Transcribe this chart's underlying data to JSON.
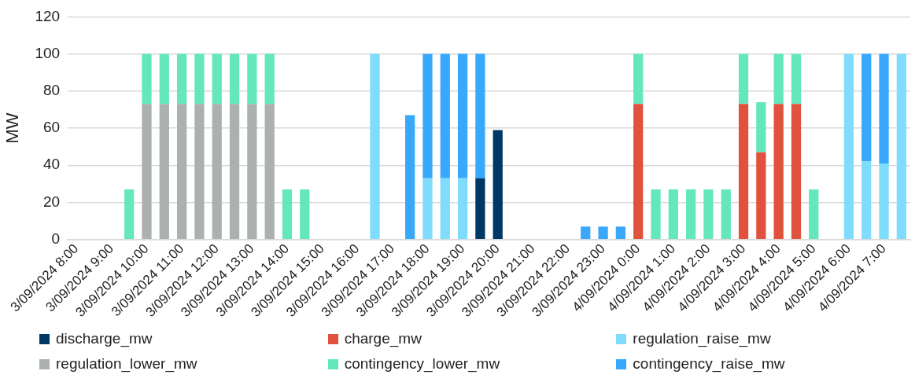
{
  "chart_data": {
    "type": "bar",
    "stacked": true,
    "ylabel": "MW",
    "ylim": [
      0,
      120
    ],
    "yticks": [
      0,
      20,
      40,
      60,
      80,
      100,
      120
    ],
    "grid": "y",
    "legend": "bottom",
    "categories": [
      "3/09/2024 8:00",
      null,
      "3/09/2024 9:00",
      null,
      "3/09/2024 10:00",
      null,
      "3/09/2024 11:00",
      null,
      "3/09/2024 12:00",
      null,
      "3/09/2024 13:00",
      null,
      "3/09/2024 14:00",
      null,
      "3/09/2024 15:00",
      null,
      "3/09/2024 16:00",
      null,
      "3/09/2024 17:00",
      null,
      "3/09/2024 18:00",
      null,
      "3/09/2024 19:00",
      null,
      "3/09/2024 20:00",
      null,
      "3/09/2024 21:00",
      null,
      "3/09/2024 22:00",
      null,
      "3/09/2024 23:00",
      null,
      "4/09/2024 0:00",
      null,
      "4/09/2024 1:00",
      null,
      "4/09/2024 2:00",
      null,
      "4/09/2024 3:00",
      null,
      "4/09/2024 4:00",
      null,
      "4/09/2024 5:00",
      null,
      "4/09/2024 6:00",
      null,
      "4/09/2024 7:00",
      null
    ],
    "series": [
      {
        "name": "discharge_mw",
        "color": "#003865",
        "values": [
          null,
          null,
          null,
          null,
          null,
          null,
          null,
          null,
          null,
          null,
          null,
          null,
          null,
          null,
          null,
          null,
          null,
          null,
          null,
          null,
          null,
          null,
          null,
          33,
          59,
          null,
          null,
          null,
          null,
          null,
          null,
          null,
          null,
          null,
          null,
          null,
          null,
          null,
          null,
          null,
          null,
          null,
          null,
          null,
          null,
          null,
          null,
          null
        ]
      },
      {
        "name": "charge_mw",
        "color": "#e0523d",
        "values": [
          null,
          null,
          null,
          null,
          null,
          null,
          null,
          null,
          null,
          null,
          null,
          null,
          null,
          null,
          null,
          null,
          null,
          null,
          null,
          null,
          null,
          null,
          null,
          null,
          null,
          null,
          null,
          null,
          null,
          null,
          null,
          null,
          73,
          null,
          null,
          null,
          null,
          null,
          73,
          47,
          73,
          73,
          null,
          null,
          null,
          null,
          null,
          null
        ]
      },
      {
        "name": "regulation_raise_mw",
        "color": "#7fdcfc",
        "values": [
          null,
          null,
          null,
          null,
          null,
          null,
          null,
          null,
          null,
          null,
          null,
          null,
          null,
          null,
          null,
          null,
          null,
          100,
          null,
          null,
          33,
          33,
          33,
          null,
          null,
          null,
          null,
          null,
          null,
          null,
          null,
          null,
          null,
          null,
          null,
          null,
          null,
          null,
          null,
          null,
          null,
          null,
          null,
          null,
          100,
          42,
          41,
          100
        ]
      },
      {
        "name": "regulation_lower_mw",
        "color": "#adb0b1",
        "values": [
          null,
          null,
          null,
          null,
          73,
          73,
          73,
          73,
          73,
          73,
          73,
          73,
          null,
          null,
          null,
          null,
          null,
          null,
          null,
          null,
          null,
          null,
          null,
          null,
          null,
          null,
          null,
          null,
          null,
          null,
          null,
          null,
          null,
          null,
          null,
          null,
          null,
          null,
          null,
          null,
          null,
          null,
          null,
          null,
          null,
          null,
          null,
          null
        ]
      },
      {
        "name": "contingency_lower_mw",
        "color": "#64e8bb",
        "values": [
          null,
          null,
          null,
          27,
          27,
          27,
          27,
          27,
          27,
          27,
          27,
          27,
          27,
          27,
          null,
          null,
          null,
          null,
          null,
          null,
          null,
          null,
          null,
          null,
          null,
          null,
          null,
          null,
          null,
          null,
          null,
          null,
          27,
          27,
          27,
          27,
          27,
          27,
          27,
          27,
          27,
          27,
          27,
          null,
          null,
          null,
          null,
          null
        ]
      },
      {
        "name": "contingency_raise_mw",
        "color": "#38a8fc",
        "values": [
          null,
          null,
          null,
          null,
          null,
          null,
          null,
          null,
          null,
          null,
          null,
          null,
          null,
          null,
          null,
          null,
          null,
          null,
          null,
          67,
          67,
          67,
          67,
          67,
          null,
          null,
          null,
          null,
          null,
          7,
          7,
          7,
          null,
          null,
          null,
          null,
          null,
          null,
          null,
          null,
          null,
          null,
          null,
          null,
          null,
          58,
          59,
          null
        ]
      }
    ]
  }
}
